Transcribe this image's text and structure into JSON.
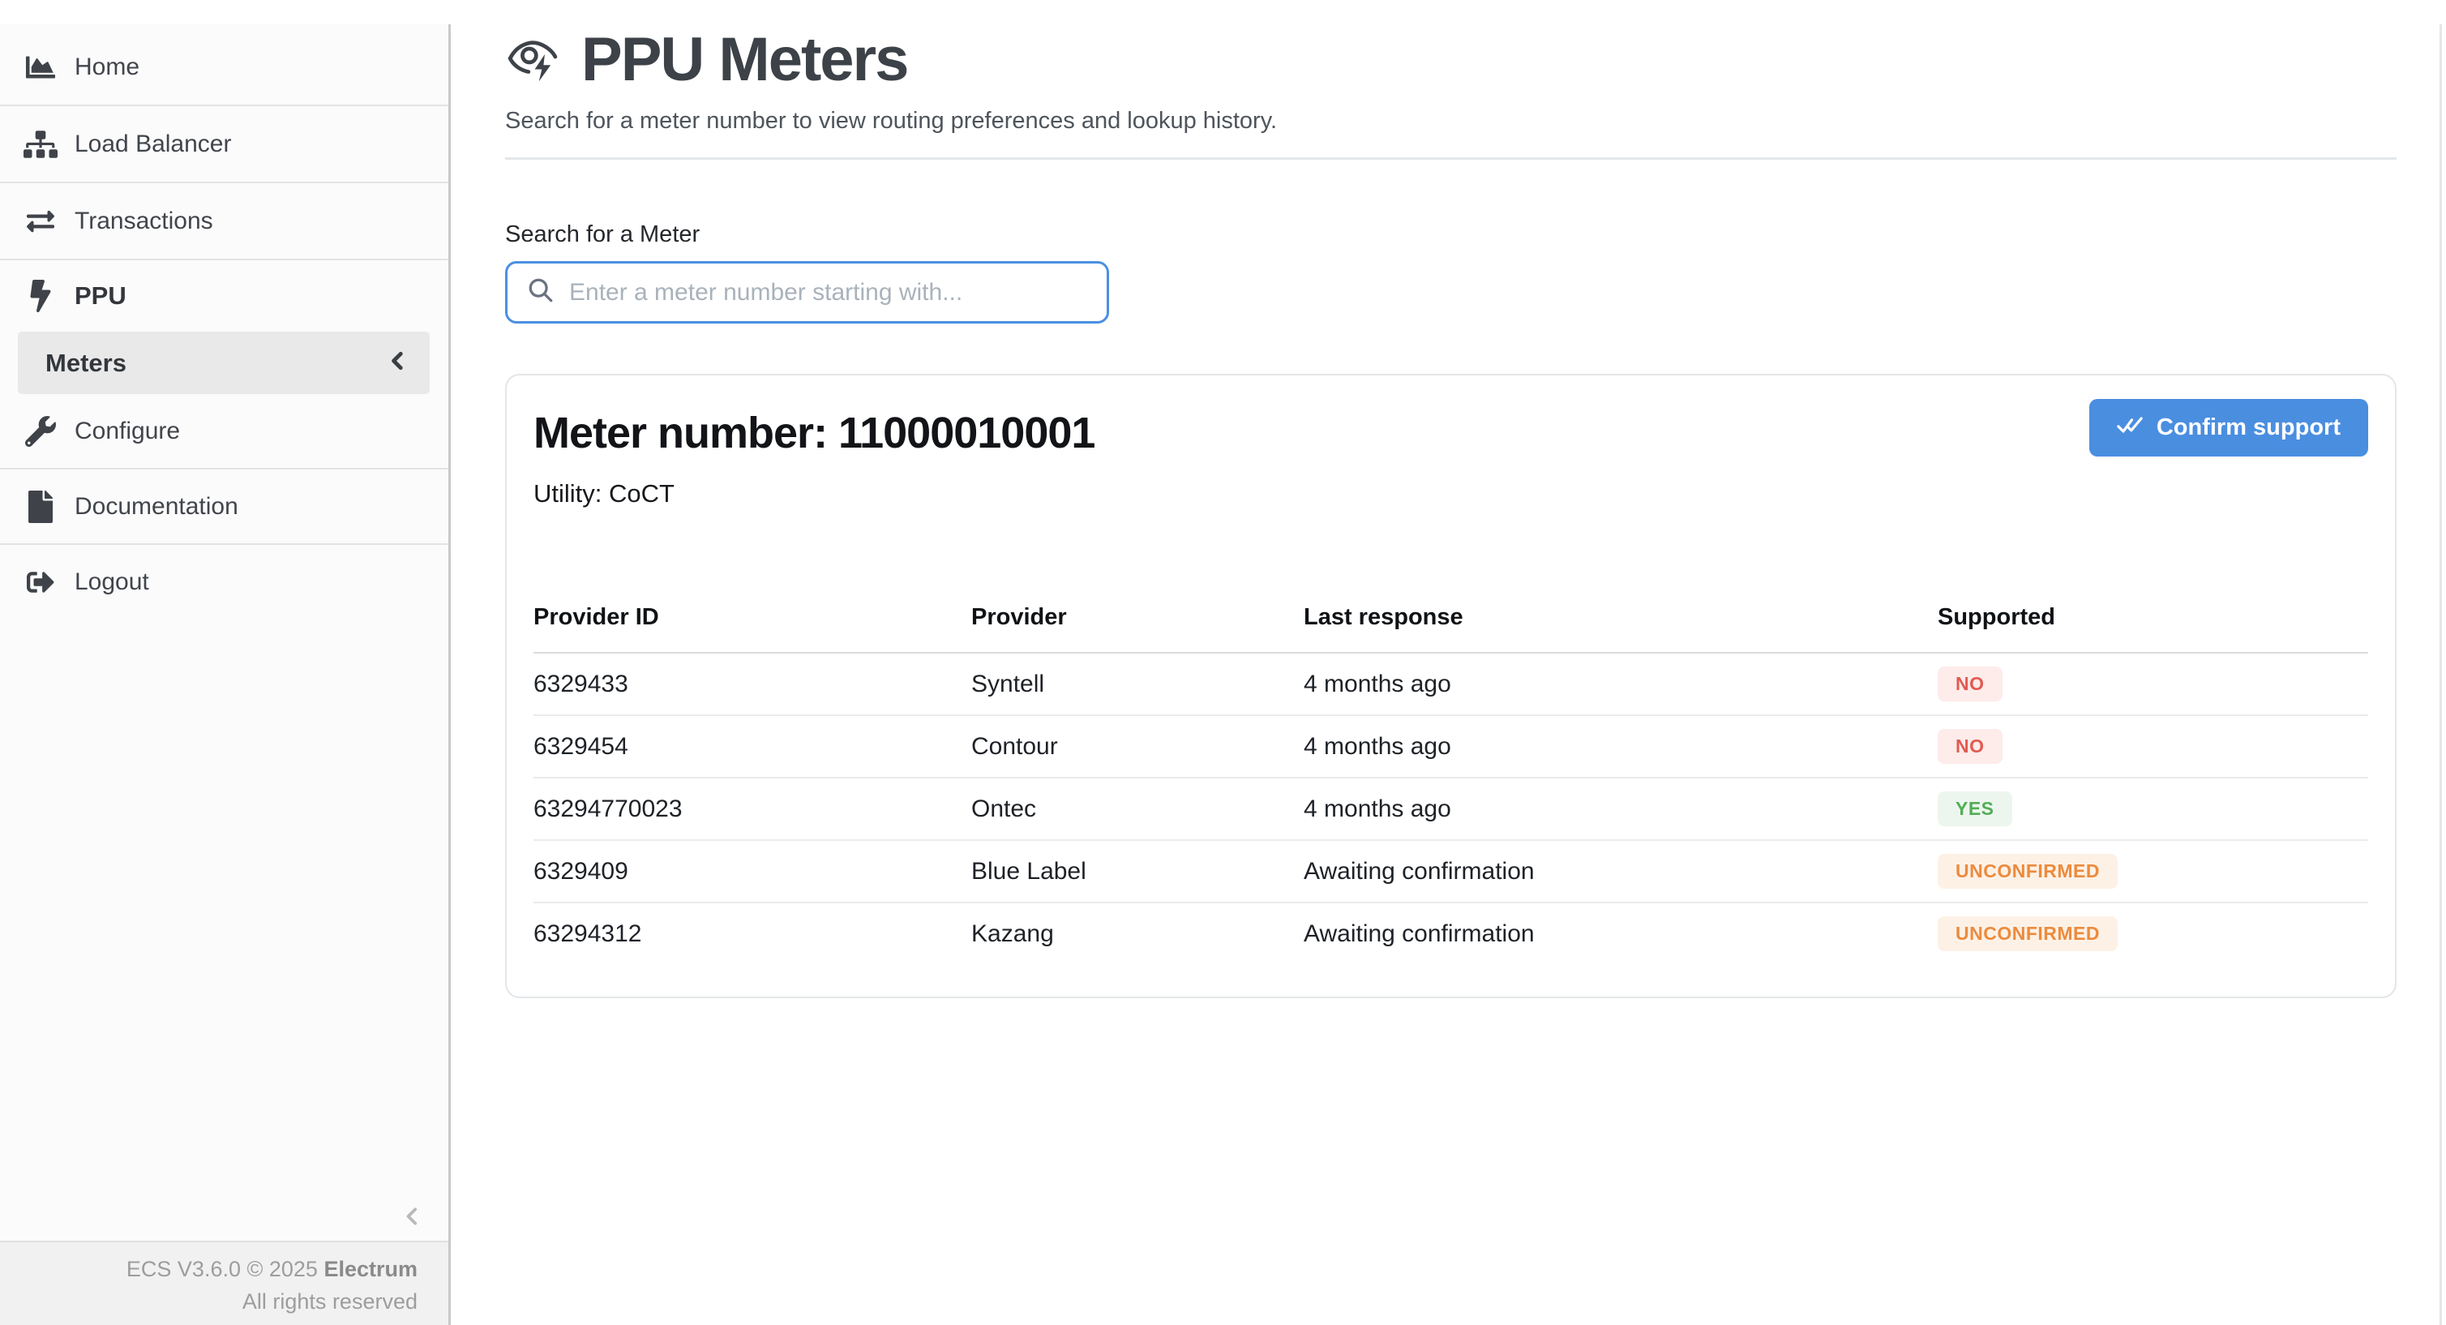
{
  "sidebar": {
    "items": [
      {
        "label": "Home",
        "icon": "chart-area-icon"
      },
      {
        "label": "Load Balancer",
        "icon": "sitemap-icon"
      },
      {
        "label": "Transactions",
        "icon": "exchange-icon"
      },
      {
        "label": "PPU",
        "icon": "bolt-icon"
      },
      {
        "label": "Meters",
        "icon": "chevron-left-icon"
      },
      {
        "label": "Configure",
        "icon": "wrench-icon"
      },
      {
        "label": "Documentation",
        "icon": "file-icon"
      },
      {
        "label": "Logout",
        "icon": "sign-out-icon"
      }
    ],
    "footer": {
      "version_prefix": "ECS V3.6.0 © 2025 ",
      "brand": "Electrum",
      "rights": "All rights reserved"
    }
  },
  "header": {
    "title": "PPU Meters",
    "subtitle": "Search for a meter number to view routing preferences and lookup history.",
    "icon": "meter-eye-bolt-icon"
  },
  "search": {
    "label": "Search for a Meter",
    "placeholder": "Enter a meter number starting with...",
    "value": ""
  },
  "meter_card": {
    "meter_label": "Meter number: 11000010001",
    "utility": "Utility: CoCT",
    "confirm_button": "Confirm support",
    "table": {
      "columns": [
        "Provider ID",
        "Provider",
        "Last response",
        "Supported"
      ],
      "rows": [
        {
          "provider_id": "6329433",
          "provider": "Syntell",
          "last_response": "4 months ago",
          "supported": "NO"
        },
        {
          "provider_id": "6329454",
          "provider": "Contour",
          "last_response": "4 months ago",
          "supported": "NO"
        },
        {
          "provider_id": "63294770023",
          "provider": "Ontec",
          "last_response": "4 months ago",
          "supported": "YES"
        },
        {
          "provider_id": "6329409",
          "provider": "Blue Label",
          "last_response": "Awaiting confirmation",
          "supported": "UNCONFIRMED"
        },
        {
          "provider_id": "63294312",
          "provider": "Kazang",
          "last_response": "Awaiting confirmation",
          "supported": "UNCONFIRMED"
        }
      ]
    }
  },
  "colors": {
    "accent_blue": "#4a8ee0",
    "input_focus_border": "#4a90e2",
    "badge_no_text": "#e25a52",
    "badge_no_bg": "#fdecea",
    "badge_yes_text": "#52ae57",
    "badge_yes_bg": "#edf6ee",
    "badge_unconfirmed_text": "#ec8b3d",
    "badge_unconfirmed_bg": "#fdf1e6"
  }
}
